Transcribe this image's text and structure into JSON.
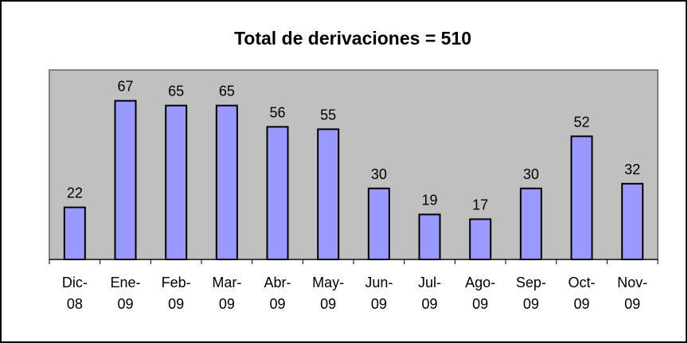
{
  "chart_data": {
    "type": "bar",
    "title": "Total de derivaciones = 510",
    "categories": [
      "Dic-08",
      "Ene-09",
      "Feb-09",
      "Mar-09",
      "Abr-09",
      "May-09",
      "Jun-09",
      "Jul-09",
      "Ago-09",
      "Sep-09",
      "Oct-09",
      "Nov-09"
    ],
    "values": [
      22,
      67,
      65,
      65,
      56,
      55,
      30,
      19,
      17,
      30,
      52,
      32
    ],
    "color": "#9999ff",
    "ylim": [
      0,
      80
    ]
  }
}
